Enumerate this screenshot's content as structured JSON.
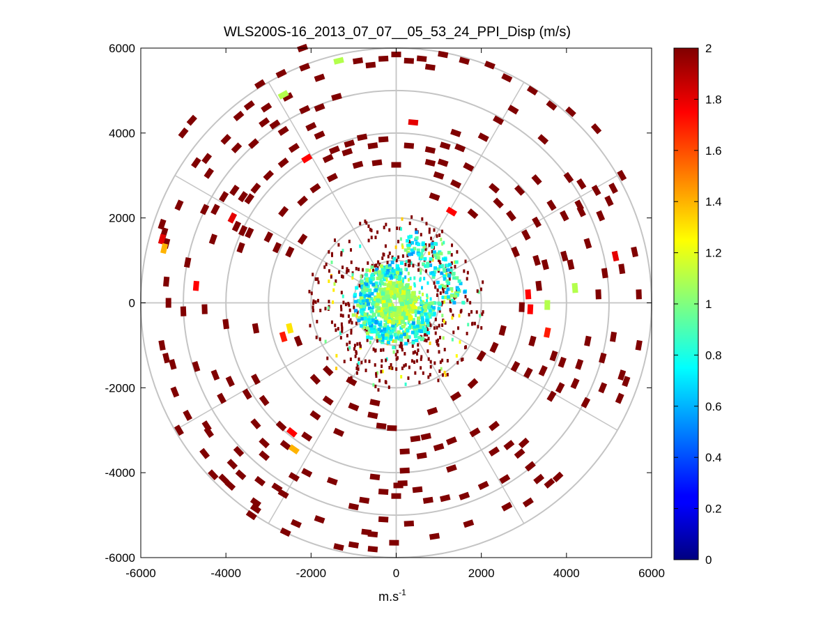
{
  "chart_data": {
    "type": "heatmap",
    "subtype": "polar-ppi-scan",
    "title": "WLS200S-16_2013_07_07__05_53_24_PPI_Disp (m/s)",
    "xlabel_base": "m.s",
    "xlabel_sup": "-1",
    "ylabel": "",
    "xlim": [
      -6000,
      6000
    ],
    "ylim": [
      -6000,
      6000
    ],
    "xticks": [
      -6000,
      -4000,
      -2000,
      0,
      2000,
      4000,
      6000
    ],
    "yticks": [
      -6000,
      -4000,
      -2000,
      0,
      2000,
      4000,
      6000
    ],
    "polar_grid": {
      "rings": [
        1000,
        2000,
        3000,
        4000,
        5000,
        6000
      ],
      "spokes_deg": [
        0,
        30,
        60,
        90,
        120,
        150,
        180,
        210,
        240,
        270,
        300,
        330
      ]
    },
    "colorbar": {
      "min": 0,
      "max": 2,
      "ticks": [
        0,
        0.2,
        0.4,
        0.6,
        0.8,
        1,
        1.2,
        1.4,
        1.6,
        1.8,
        2
      ],
      "colormap": "jet"
    },
    "points": [
      [
        -5500,
        1850,
        2
      ],
      [
        -5450,
        1650,
        2
      ],
      [
        -5400,
        1400,
        2
      ],
      [
        -5500,
        1500,
        1.8
      ],
      [
        -5450,
        1280,
        1.4
      ],
      [
        -5100,
        2300,
        2
      ],
      [
        -4500,
        2200,
        2
      ],
      [
        -3850,
        2000,
        1.8
      ],
      [
        -3750,
        1800,
        2
      ],
      [
        -3600,
        1700,
        2
      ],
      [
        -3450,
        1650,
        2
      ],
      [
        -3000,
        1550,
        2
      ],
      [
        -2800,
        1300,
        2
      ],
      [
        -2500,
        1200,
        2
      ],
      [
        -4700,
        400,
        1.75
      ],
      [
        -5350,
        0,
        2
      ],
      [
        -5000,
        -200,
        2
      ],
      [
        -4500,
        -150,
        2
      ],
      [
        -4000,
        -500,
        2
      ],
      [
        -3300,
        -600,
        2
      ],
      [
        -2500,
        -600,
        1.3
      ],
      [
        -2650,
        -800,
        1.7
      ],
      [
        -2300,
        -900,
        2
      ],
      [
        -5400,
        -1300,
        2
      ],
      [
        -5250,
        -1450,
        2
      ],
      [
        -4700,
        -1500,
        2
      ],
      [
        -4250,
        -1700,
        2
      ],
      [
        -3900,
        -1850,
        2
      ],
      [
        -3500,
        -2150,
        2
      ],
      [
        -3100,
        -2300,
        2
      ],
      [
        -4450,
        -2900,
        2
      ],
      [
        -4400,
        -3050,
        2
      ],
      [
        -3300,
        -2850,
        2
      ],
      [
        -2700,
        -2900,
        2
      ],
      [
        -2450,
        -3050,
        1.75
      ],
      [
        -3100,
        -3300,
        2
      ],
      [
        -2600,
        -3350,
        2
      ],
      [
        -2400,
        -3450,
        1.4
      ],
      [
        -3700,
        -3500,
        2
      ],
      [
        -3850,
        -3800,
        2
      ],
      [
        -4300,
        -4050,
        2
      ],
      [
        -4050,
        -4150,
        2
      ],
      [
        -3900,
        -4300,
        2
      ],
      [
        -3650,
        -4050,
        2
      ],
      [
        -3200,
        -4200,
        2
      ],
      [
        -2800,
        -4350,
        2
      ],
      [
        -2400,
        -4100,
        2
      ],
      [
        -2650,
        -4500,
        2
      ],
      [
        -3300,
        -4700,
        2
      ],
      [
        -3300,
        -4850,
        2
      ],
      [
        -2350,
        -5200,
        2
      ],
      [
        -1800,
        -5100,
        2
      ],
      [
        -1350,
        -5750,
        2
      ],
      [
        -1000,
        -5700,
        2
      ],
      [
        -550,
        -5800,
        2
      ],
      [
        -50,
        -5650,
        2
      ],
      [
        -550,
        -5450,
        2
      ],
      [
        -700,
        -5400,
        2
      ],
      [
        -1000,
        -4800,
        2
      ],
      [
        -750,
        -4650,
        2
      ],
      [
        -300,
        -4450,
        2
      ],
      [
        0,
        -4550,
        2
      ],
      [
        50,
        -4300,
        2
      ],
      [
        150,
        -4250,
        2
      ],
      [
        500,
        -4400,
        2
      ],
      [
        750,
        -4650,
        2
      ],
      [
        1150,
        -4600,
        2
      ],
      [
        1600,
        -4550,
        2
      ],
      [
        2050,
        -4300,
        2
      ],
      [
        2550,
        -4150,
        2
      ],
      [
        3150,
        -3850,
        2
      ],
      [
        3350,
        -4150,
        2
      ],
      [
        3600,
        -4250,
        2
      ],
      [
        3800,
        -4100,
        2
      ],
      [
        2900,
        -3550,
        2
      ],
      [
        2650,
        -3350,
        2
      ],
      [
        3000,
        -3300,
        2
      ],
      [
        2300,
        -2900,
        2
      ],
      [
        1850,
        -3050,
        2
      ],
      [
        1300,
        -3250,
        2
      ],
      [
        1000,
        -3400,
        2
      ],
      [
        700,
        -3150,
        2
      ],
      [
        450,
        -3200,
        2
      ],
      [
        -100,
        -2950,
        2
      ],
      [
        -350,
        -2900,
        2
      ],
      [
        -550,
        -2650,
        2
      ],
      [
        -1000,
        -2450,
        2
      ],
      [
        -1600,
        -2300,
        2
      ],
      [
        -1900,
        -2650,
        2
      ],
      [
        -1350,
        -3050,
        2
      ],
      [
        3650,
        -2200,
        2
      ],
      [
        3850,
        -2000,
        2
      ],
      [
        4200,
        -1900,
        2
      ],
      [
        4450,
        -2350,
        2
      ],
      [
        4850,
        -2000,
        2
      ],
      [
        5250,
        -2250,
        2
      ],
      [
        5400,
        -1850,
        2
      ],
      [
        5300,
        -1700,
        2
      ],
      [
        4850,
        -1300,
        2
      ],
      [
        4300,
        -1450,
        2
      ],
      [
        3900,
        -1400,
        2
      ],
      [
        3700,
        -1250,
        2
      ],
      [
        3450,
        -1600,
        2
      ],
      [
        3100,
        -1650,
        2
      ],
      [
        2800,
        -1500,
        2
      ],
      [
        2300,
        -1050,
        2
      ],
      [
        2000,
        -1250,
        2
      ],
      [
        3550,
        -700,
        1.7
      ],
      [
        3200,
        -900,
        2
      ],
      [
        2500,
        -650,
        2
      ],
      [
        3550,
        -50,
        1.1
      ],
      [
        3150,
        -150,
        1.75
      ],
      [
        2950,
        -100,
        2
      ],
      [
        3100,
        200,
        1.75
      ],
      [
        3350,
        400,
        2
      ],
      [
        4200,
        350,
        1.1
      ],
      [
        4750,
        200,
        2
      ],
      [
        4900,
        700,
        2
      ],
      [
        5700,
        200,
        2
      ],
      [
        5600,
        1200,
        2
      ],
      [
        5150,
        1100,
        1.8
      ],
      [
        4100,
        900,
        2
      ],
      [
        3950,
        1100,
        2
      ],
      [
        3500,
        900,
        2
      ],
      [
        3300,
        1000,
        2
      ],
      [
        2800,
        1200,
        2
      ],
      [
        3050,
        1600,
        2
      ],
      [
        3300,
        1900,
        2
      ],
      [
        3650,
        2300,
        2
      ],
      [
        3950,
        2050,
        2
      ],
      [
        4350,
        2150,
        2
      ],
      [
        4800,
        2050,
        2
      ],
      [
        5000,
        2400,
        2
      ],
      [
        4700,
        2650,
        2
      ],
      [
        5100,
        2700,
        2
      ],
      [
        4350,
        2800,
        2
      ],
      [
        4050,
        2950,
        2
      ],
      [
        3300,
        2900,
        2
      ],
      [
        2900,
        2650,
        2
      ],
      [
        2400,
        2350,
        2
      ],
      [
        1800,
        2100,
        2
      ],
      [
        1300,
        2150,
        1.75
      ],
      [
        900,
        2500,
        2
      ],
      [
        1400,
        2800,
        2
      ],
      [
        1100,
        3300,
        2
      ],
      [
        800,
        3300,
        2
      ],
      [
        1500,
        3650,
        2
      ],
      [
        2050,
        3900,
        2
      ],
      [
        2400,
        4300,
        2
      ],
      [
        2750,
        4550,
        2
      ],
      [
        3450,
        3850,
        2
      ],
      [
        4100,
        4500,
        2
      ],
      [
        4700,
        4100,
        2
      ],
      [
        4300,
        2300,
        2
      ],
      [
        1400,
        4000,
        2
      ],
      [
        1150,
        3700,
        2
      ],
      [
        800,
        3600,
        2
      ],
      [
        400,
        4250,
        1.8
      ],
      [
        300,
        3700,
        2
      ],
      [
        0,
        3250,
        2
      ],
      [
        -450,
        3300,
        2
      ],
      [
        -900,
        3250,
        2
      ],
      [
        -1150,
        3550,
        2
      ],
      [
        -1600,
        3400,
        2
      ],
      [
        -2100,
        3400,
        1.75
      ],
      [
        -2400,
        3650,
        2
      ],
      [
        -2650,
        3300,
        2
      ],
      [
        -3000,
        3000,
        2
      ],
      [
        -3300,
        2700,
        2
      ],
      [
        -3450,
        2450,
        2
      ],
      [
        -3600,
        2500,
        2
      ],
      [
        -3800,
        2650,
        2
      ],
      [
        -4050,
        2500,
        2
      ],
      [
        -4250,
        2200,
        2
      ],
      [
        -4400,
        3050,
        2
      ],
      [
        -4700,
        3300,
        2
      ],
      [
        -4450,
        3400,
        2
      ],
      [
        -4000,
        3850,
        2
      ],
      [
        -3750,
        3650,
        2
      ],
      [
        -3350,
        3750,
        2
      ],
      [
        -3100,
        4250,
        2
      ],
      [
        -2850,
        4200,
        2
      ],
      [
        -2650,
        4050,
        2
      ],
      [
        -2000,
        4150,
        2
      ],
      [
        -1800,
        3950,
        2
      ],
      [
        -1450,
        3600,
        2
      ],
      [
        -1100,
        3750,
        2
      ],
      [
        -800,
        3900,
        2
      ],
      [
        -550,
        3700,
        2
      ],
      [
        -300,
        3850,
        2
      ],
      [
        -1400,
        4850,
        2
      ],
      [
        -1800,
        4600,
        2
      ],
      [
        -2150,
        4550,
        2
      ],
      [
        -2550,
        4850,
        2
      ],
      [
        -2650,
        4900,
        1.1
      ],
      [
        -3200,
        5150,
        2
      ],
      [
        -3050,
        4600,
        2
      ],
      [
        -3450,
        4650,
        2
      ],
      [
        -3700,
        4400,
        2
      ],
      [
        -2700,
        5400,
        2
      ],
      [
        -1350,
        5700,
        1.1
      ],
      [
        -2150,
        5550,
        2
      ],
      [
        -1800,
        5300,
        2
      ],
      [
        -900,
        5700,
        2
      ],
      [
        -600,
        5600,
        2
      ],
      [
        -300,
        5750,
        2
      ],
      [
        0,
        5850,
        2
      ],
      [
        300,
        5700,
        2
      ],
      [
        600,
        5750,
        2
      ],
      [
        800,
        5550,
        2
      ],
      [
        1100,
        5850,
        2
      ],
      [
        1600,
        5700,
        2
      ],
      [
        2200,
        5600,
        2
      ],
      [
        2600,
        5300,
        2
      ],
      [
        3200,
        5000,
        2
      ],
      [
        3650,
        4650,
        2
      ],
      [
        5300,
        3000,
        2
      ],
      [
        -4800,
        4300,
        2
      ],
      [
        -5000,
        4000,
        2
      ],
      [
        -2200,
        6000,
        2
      ],
      [
        -4900,
        -2650,
        2
      ],
      [
        -5200,
        -2100,
        2
      ],
      [
        -5500,
        -1000,
        2
      ],
      [
        -5400,
        500,
        2
      ],
      [
        -4900,
        950,
        2
      ],
      [
        -4300,
        1500,
        2
      ],
      [
        -3650,
        1300,
        2
      ],
      [
        -2650,
        2150,
        2
      ],
      [
        -2200,
        1500,
        2
      ],
      [
        -1900,
        2700,
        2
      ],
      [
        -1500,
        2950,
        2
      ],
      [
        -2200,
        2400,
        2
      ],
      [
        1000,
        3000,
        2
      ],
      [
        1700,
        3200,
        2
      ],
      [
        2300,
        2700,
        2
      ],
      [
        2700,
        2050,
        2
      ],
      [
        4500,
        1400,
        2
      ],
      [
        5300,
        800,
        2
      ],
      [
        5700,
        -1000,
        2
      ],
      [
        5100,
        -800,
        2
      ],
      [
        4500,
        -900,
        2
      ],
      [
        1800,
        -1900,
        2
      ],
      [
        1400,
        -2200,
        2
      ],
      [
        850,
        -2550,
        2
      ],
      [
        -500,
        -2350,
        2
      ],
      [
        -1050,
        -1850,
        2
      ],
      [
        -1600,
        -1600,
        2
      ],
      [
        -1900,
        -1800,
        2
      ],
      [
        -3300,
        -1800,
        2
      ],
      [
        -4100,
        -2250,
        2
      ],
      [
        -4500,
        -3550,
        2
      ],
      [
        -5100,
        -3000,
        2
      ],
      [
        -2100,
        -4000,
        2
      ],
      [
        -1500,
        -4200,
        2
      ],
      [
        -500,
        -4100,
        2
      ],
      [
        200,
        -3950,
        2
      ],
      [
        200,
        -3500,
        2
      ],
      [
        600,
        -3600,
        2
      ],
      [
        1300,
        -3900,
        2
      ],
      [
        2300,
        -3500,
        2
      ],
      [
        2600,
        -4800,
        2
      ],
      [
        3100,
        -4700,
        2
      ],
      [
        1700,
        -5200,
        2
      ],
      [
        900,
        -5500,
        2
      ],
      [
        300,
        -5200,
        2
      ],
      [
        -300,
        -5100,
        2
      ],
      [
        -2600,
        -5400,
        2
      ],
      [
        -3400,
        -5000,
        2
      ],
      [
        -3100,
        -3600,
        2
      ],
      [
        -2100,
        -3150,
        2
      ]
    ]
  }
}
